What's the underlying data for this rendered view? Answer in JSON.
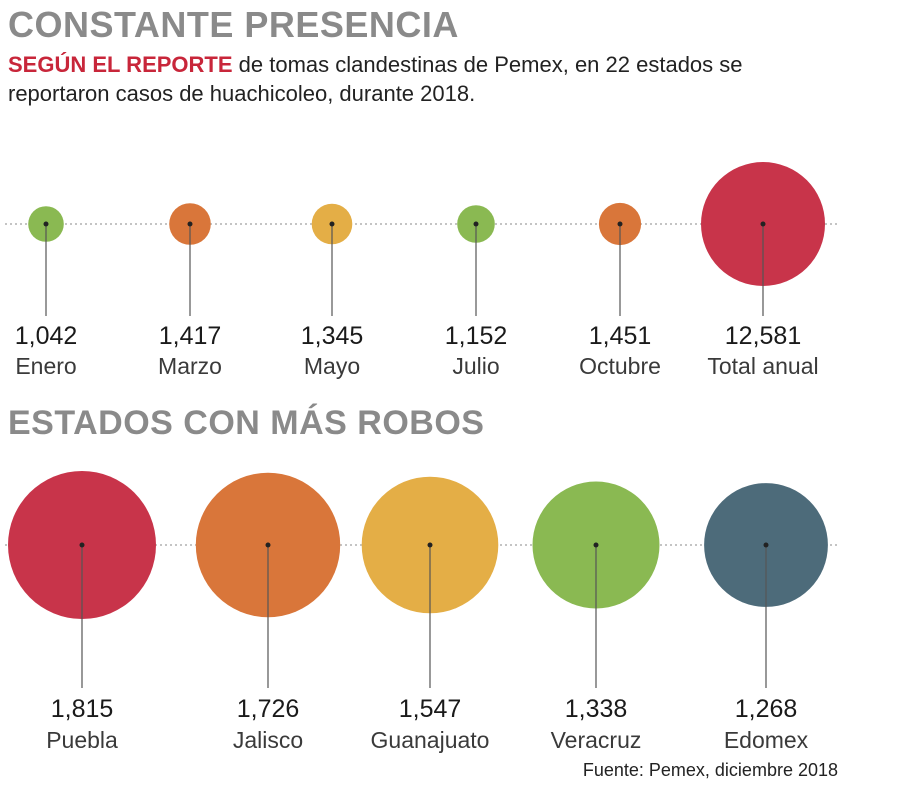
{
  "header": {
    "title": "CONSTANTE PRESENCIA",
    "subtitle_lead": "SEGÚN EL REPORTE",
    "subtitle_rest": " de tomas clandestinas de Pemex, en 22 estados se reportaron casos de huachicoleo, durante 2018."
  },
  "section2": {
    "title": "ESTADOS CON MÁS ROBOS"
  },
  "footer": {
    "source": "Fuente: Pemex, diciembre 2018"
  },
  "colors": {
    "green": "#8ab952",
    "orange": "#d9763a",
    "yellow": "#e4ae46",
    "red": "#c8344a",
    "slate": "#4d6b7a",
    "line": "#555555"
  },
  "chart_data": [
    {
      "type": "scatter",
      "categories": [
        "Enero",
        "Marzo",
        "Mayo",
        "Julio",
        "Octubre",
        "Total anual"
      ],
      "values": [
        1042,
        1417,
        1345,
        1152,
        1451,
        12581
      ],
      "value_labels": [
        "1,042",
        "1,417",
        "1,345",
        "1,152",
        "1,451",
        "12,581"
      ],
      "colors": [
        "green",
        "orange",
        "yellow",
        "green",
        "orange",
        "red"
      ],
      "encoding": "bubble area"
    },
    {
      "type": "scatter",
      "title": "ESTADOS CON MÁS ROBOS",
      "categories": [
        "Puebla",
        "Jalisco",
        "Guanajuato",
        "Veracruz",
        "Edomex"
      ],
      "values": [
        1815,
        1726,
        1547,
        1338,
        1268
      ],
      "value_labels": [
        "1,815",
        "1,726",
        "1,547",
        "1,338",
        "1,268"
      ],
      "colors": [
        "red",
        "orange",
        "yellow",
        "green",
        "slate"
      ],
      "encoding": "bubble area"
    }
  ]
}
